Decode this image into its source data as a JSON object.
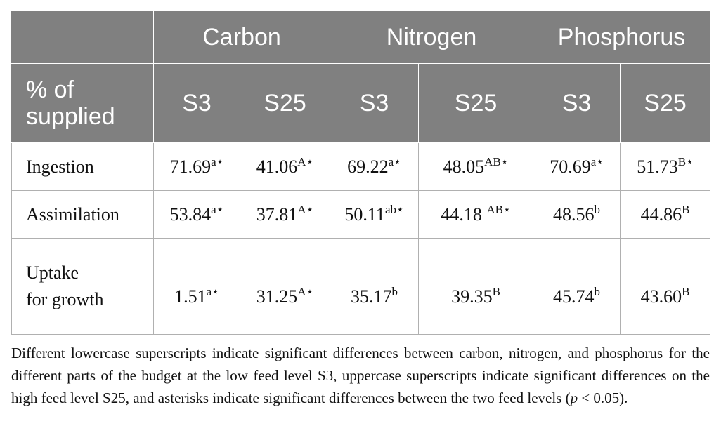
{
  "table": {
    "groups": [
      "Carbon",
      "Nitrogen",
      "Phosphorus"
    ],
    "corner_label": [
      "% of",
      "supplied"
    ],
    "subheaders": [
      "S3",
      "S25",
      "S3",
      "S25",
      "S3",
      "S25"
    ],
    "rows": [
      {
        "label": [
          "Ingestion"
        ],
        "cells": [
          {
            "v": "71.69",
            "s": "a⋆"
          },
          {
            "v": "41.06",
            "s": "A⋆"
          },
          {
            "v": "69.22",
            "s": "a⋆"
          },
          {
            "v": "48.05",
            "s": "AB⋆"
          },
          {
            "v": "70.69",
            "s": "a⋆"
          },
          {
            "v": "51.73",
            "s": "B⋆"
          }
        ]
      },
      {
        "label": [
          "Assimilation"
        ],
        "cells": [
          {
            "v": "53.84",
            "s": "a⋆"
          },
          {
            "v": "37.81",
            "s": "A⋆"
          },
          {
            "v": "50.11",
            "s": "ab⋆"
          },
          {
            "v": "44.18 ",
            "s": "AB⋆"
          },
          {
            "v": "48.56",
            "s": "b"
          },
          {
            "v": "44.86",
            "s": "B"
          }
        ]
      },
      {
        "label": [
          "Uptake",
          "for growth"
        ],
        "cells": [
          {
            "v": "1.51",
            "s": "a⋆"
          },
          {
            "v": "31.25",
            "s": "A⋆"
          },
          {
            "v": "35.17",
            "s": "b"
          },
          {
            "v": "39.35",
            "s": "B"
          },
          {
            "v": "45.74",
            "s": "b"
          },
          {
            "v": "43.60",
            "s": "B"
          }
        ]
      }
    ]
  },
  "footnote": {
    "before_p": "Different lowercase superscripts indicate significant differences between carbon, nitrogen, and phosphorus for the different parts of the budget at the low feed level S3, uppercase superscripts indicate significant differences on the high feed level S25, and asterisks indicate significant differences between the two feed levels (",
    "p": "p",
    "after_p": " < 0.05)."
  }
}
